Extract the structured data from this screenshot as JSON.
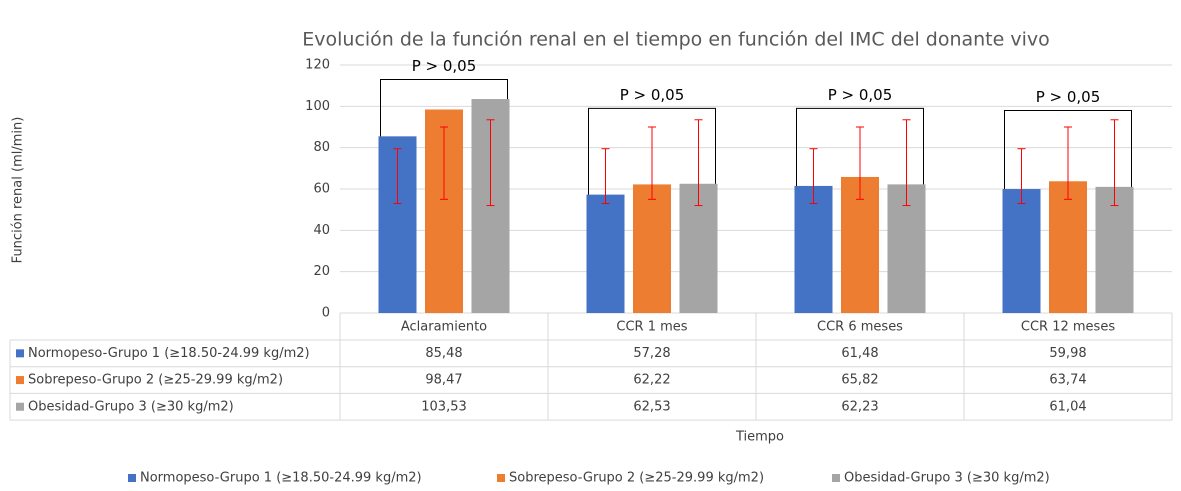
{
  "chart_data": {
    "type": "bar",
    "title": "Evolución de la función renal en el tiempo en función del IMC del donante vivo",
    "x_label": "Tiempo",
    "y_label": "Función renal (ml/min)",
    "categories": [
      "Aclaramiento",
      "CCR 1 mes",
      "CCR 6 meses",
      "CCR 12 meses"
    ],
    "series": [
      {
        "name": "Normopeso-Grupo 1 (≥18.50-24.99 kg/m2)",
        "color": "#4472c4",
        "values": [
          85.48,
          57.28,
          61.48,
          59.98
        ],
        "value_labels": [
          "85,48",
          "57,28",
          "61,48",
          "59,98"
        ],
        "error_low": [
          53,
          53,
          53,
          53
        ],
        "error_high": [
          79.5,
          79.5,
          79.5,
          79.5
        ]
      },
      {
        "name": "Sobrepeso-Grupo 2 (≥25-29.99 kg/m2)",
        "color": "#ed7d31",
        "values": [
          98.47,
          62.22,
          65.82,
          63.74
        ],
        "value_labels": [
          "98,47",
          "62,22",
          "65,82",
          "63,74"
        ],
        "error_low": [
          55,
          55,
          55,
          55
        ],
        "error_high": [
          90,
          90,
          90,
          90
        ]
      },
      {
        "name": "Obesidad-Grupo 3 (≥30 kg/m2)",
        "color": "#a5a5a5",
        "values": [
          103.53,
          62.53,
          62.23,
          61.04
        ],
        "value_labels": [
          "103,53",
          "62,53",
          "62,23",
          "61,04"
        ],
        "error_low": [
          52,
          52,
          52,
          52
        ],
        "error_high": [
          93.5,
          93.5,
          93.5,
          93.5
        ]
      }
    ],
    "error_color": "#ff0000",
    "annotations": [
      {
        "label": "P > 0,05",
        "y": 113
      },
      {
        "label": "P > 0,05",
        "y": 99
      },
      {
        "label": "P > 0,05",
        "y": 99
      },
      {
        "label": "P > 0,05",
        "y": 98
      }
    ],
    "ylim": [
      0,
      120
    ],
    "yticks": [
      0,
      20,
      40,
      60,
      80,
      100,
      120
    ],
    "grid": true,
    "legend": "bottom"
  }
}
